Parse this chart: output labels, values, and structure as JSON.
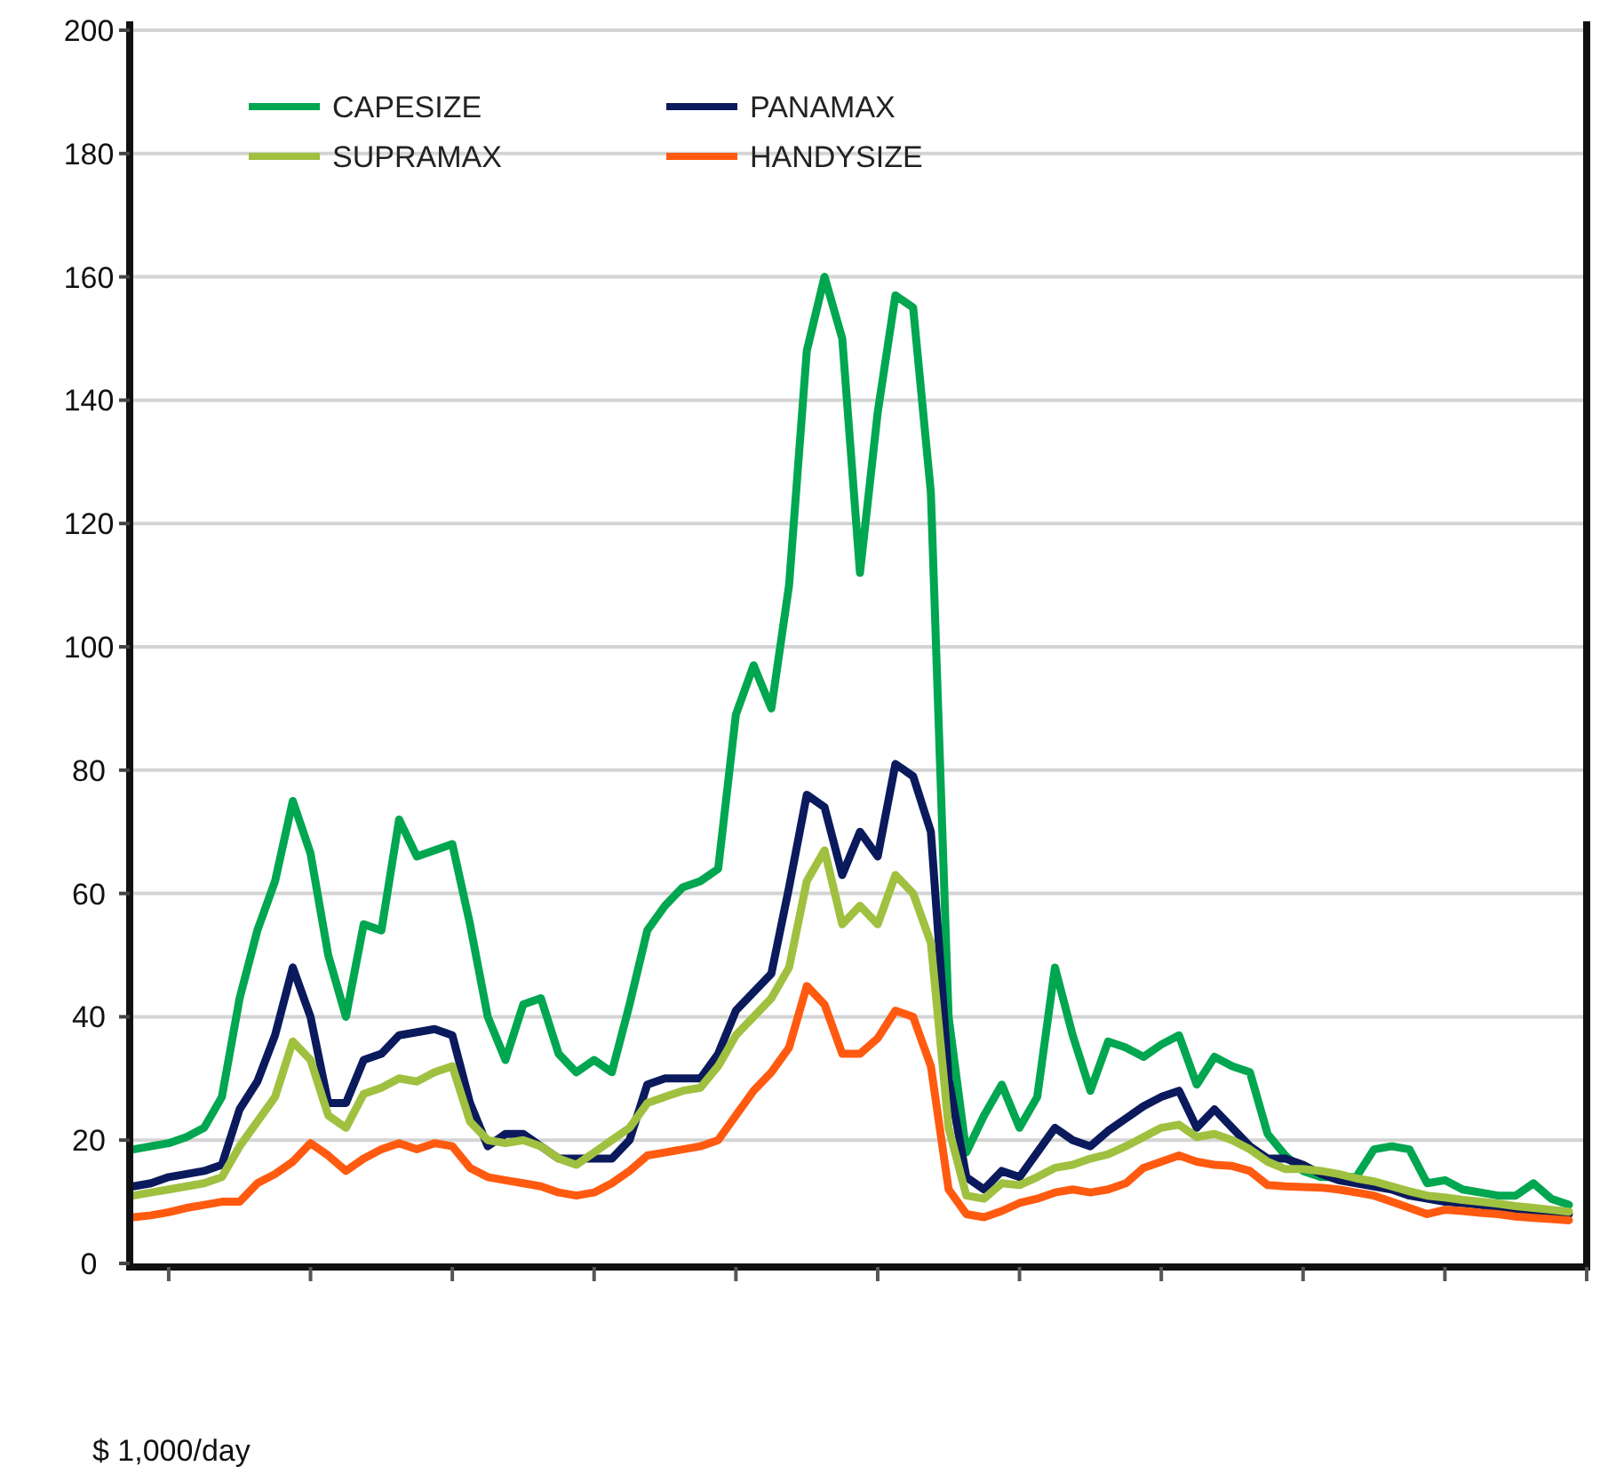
{
  "chart_data": {
    "type": "line",
    "categories": [
      null,
      null,
      null,
      null,
      null,
      null,
      null,
      null,
      null,
      null,
      null,
      null,
      null,
      null,
      null,
      null,
      null,
      null,
      null,
      null,
      null,
      null,
      null,
      null,
      null,
      null,
      null,
      null,
      null,
      null,
      null,
      null,
      null,
      null,
      null,
      null,
      null,
      null,
      null,
      null,
      null,
      null,
      null,
      null,
      null,
      null,
      null,
      null,
      null,
      null,
      null,
      null,
      null,
      null,
      null,
      null,
      null,
      null,
      null,
      null,
      null,
      null,
      null,
      null,
      null,
      null,
      null,
      null,
      null,
      null,
      null,
      null,
      null,
      null,
      null,
      null,
      null,
      null,
      null,
      null,
      null,
      null,
      null
    ],
    "series": [
      {
        "name": "CAPESIZE",
        "color": "#00a650",
        "values": [
          18.5,
          19,
          19.5,
          20.5,
          22,
          27,
          43,
          54,
          62,
          75,
          66.5,
          50,
          40,
          55,
          54,
          72,
          66,
          67,
          68,
          55,
          40,
          33,
          42,
          43,
          34,
          31,
          33,
          31,
          42,
          54,
          58,
          61,
          62,
          64,
          89,
          97,
          90,
          110,
          148,
          160,
          150,
          112,
          138,
          157,
          155,
          125,
          40,
          18,
          24,
          29,
          22,
          27,
          48,
          37,
          28,
          36,
          35,
          33.5,
          35.5,
          37,
          29,
          33.5,
          32,
          31,
          21,
          17.5,
          15,
          14,
          14,
          14,
          18.5,
          19,
          18.5,
          13,
          13.5,
          12,
          11.5,
          11,
          11,
          13,
          10.5,
          9.5,
          null
        ]
      },
      {
        "name": "PANAMAX",
        "color": "#0a1a5c",
        "values": [
          12.5,
          13,
          14,
          14.5,
          15,
          16,
          25,
          29.5,
          37,
          48,
          40,
          26,
          26,
          33,
          34,
          37,
          37.5,
          38,
          37,
          26,
          19,
          21,
          21,
          19,
          17,
          17,
          17,
          17,
          20,
          29,
          30,
          30,
          30,
          34,
          41,
          44,
          47,
          61,
          76,
          74,
          63,
          70,
          66,
          81,
          79,
          70,
          30,
          14,
          12,
          15,
          14,
          18,
          22,
          20,
          19,
          21.5,
          23.5,
          25.5,
          27,
          28,
          22,
          25,
          22,
          19,
          17,
          17,
          16,
          14.5,
          13.5,
          13,
          12.5,
          12,
          11,
          10.5,
          10,
          9.8,
          9.5,
          9,
          8.7,
          8.4,
          8.1,
          8,
          null
        ]
      },
      {
        "name": "SUPRAMAX",
        "color": "#a0c040",
        "values": [
          11,
          11.5,
          12,
          12.5,
          13,
          14,
          19,
          23,
          27,
          36,
          33,
          24,
          22,
          27.5,
          28.5,
          30,
          29.5,
          31,
          32,
          23,
          20,
          19.5,
          20,
          19,
          17,
          16,
          18,
          20,
          22,
          26,
          27,
          28,
          28.5,
          32,
          37,
          40,
          43,
          48,
          62,
          67,
          55,
          58,
          55,
          63,
          60,
          52,
          22,
          11,
          10.5,
          13,
          12.7,
          14,
          15.5,
          16,
          17,
          17.7,
          19,
          20.5,
          22,
          22.5,
          20.5,
          21,
          20,
          18.5,
          16.5,
          15.3,
          15.3,
          15,
          14.5,
          13.8,
          13.3,
          12.5,
          11.7,
          11,
          10.7,
          10.3,
          10,
          9.7,
          9.3,
          9,
          8.7,
          8.4,
          null
        ]
      },
      {
        "name": "HANDYSIZE",
        "color": "#ff5a10",
        "values": [
          7.5,
          7.8,
          8.3,
          9,
          9.5,
          10,
          10,
          13,
          14.5,
          16.5,
          19.5,
          17.5,
          15,
          17,
          18.5,
          19.5,
          18.5,
          19.5,
          19,
          15.5,
          14,
          13.5,
          13,
          12.5,
          11.5,
          11,
          11.5,
          13,
          15,
          17.5,
          18,
          18.5,
          19,
          20,
          24,
          28,
          31,
          35,
          45,
          42,
          34,
          34,
          36.5,
          41,
          40,
          32,
          12,
          8,
          7.5,
          8.5,
          9.8,
          10.5,
          11.5,
          12,
          11.5,
          12,
          13,
          15.5,
          16.5,
          17.5,
          16.5,
          16,
          15.8,
          15,
          12.7,
          12.5,
          12.4,
          12.3,
          12,
          11.5,
          11,
          10,
          9,
          8,
          8.7,
          8.5,
          8.2,
          8,
          7.6,
          7.4,
          7.2,
          7,
          null
        ]
      }
    ],
    "ylim": [
      0,
      200
    ],
    "yticks": [
      0,
      20,
      40,
      60,
      80,
      100,
      120,
      140,
      160,
      180,
      200
    ],
    "grid": "y",
    "legend": "top left",
    "tick_labels": "y",
    "annotations": [
      "$ 1,000/day"
    ]
  }
}
